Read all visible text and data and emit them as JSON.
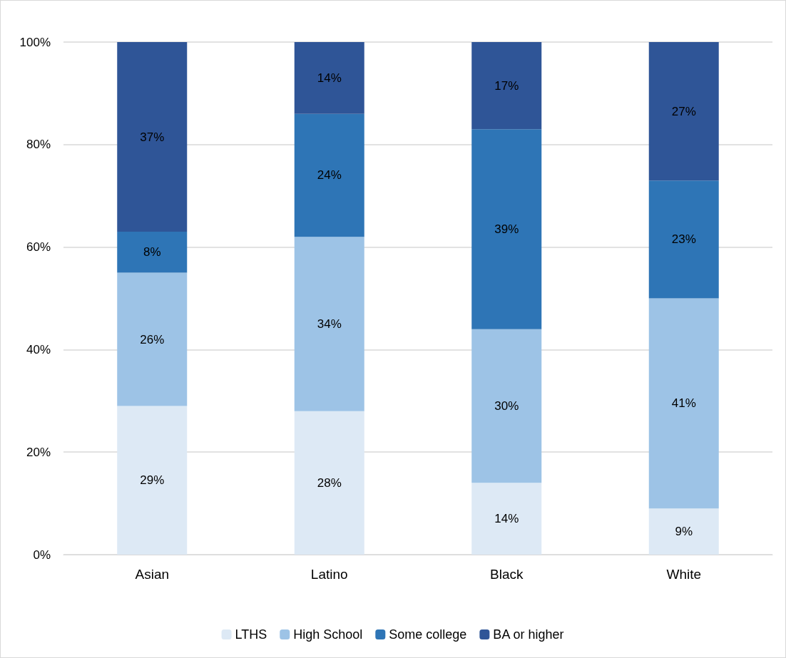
{
  "chart_data": {
    "type": "bar",
    "stacked": true,
    "categories": [
      "Asian",
      "Latino",
      "Black",
      "White"
    ],
    "series": [
      {
        "name": "LTHS",
        "color": "#dde9f5",
        "values": [
          29,
          28,
          14,
          9
        ],
        "value_labels": [
          "29%",
          "28%",
          "14%",
          "9%"
        ]
      },
      {
        "name": "High School",
        "color": "#9dc3e6",
        "values": [
          26,
          34,
          30,
          41
        ],
        "value_labels": [
          "26%",
          "34%",
          "30%",
          "41%"
        ]
      },
      {
        "name": "Some college",
        "color": "#2e75b6",
        "values": [
          8,
          24,
          39,
          23
        ],
        "value_labels": [
          "8%",
          "24%",
          "39%",
          "23%"
        ]
      },
      {
        "name": "BA or higher",
        "color": "#2f5597",
        "values": [
          37,
          14,
          17,
          27
        ],
        "value_labels": [
          "37%",
          "14%",
          "17%",
          "27%"
        ]
      }
    ],
    "ylim": [
      0,
      100
    ],
    "yticks": [
      {
        "value": 0,
        "label": "0%"
      },
      {
        "value": 20,
        "label": "20%"
      },
      {
        "value": 40,
        "label": "40%"
      },
      {
        "value": 60,
        "label": "60%"
      },
      {
        "value": 80,
        "label": "80%"
      },
      {
        "value": 100,
        "label": "100%"
      }
    ],
    "grid": "y",
    "legend": "bottom"
  }
}
